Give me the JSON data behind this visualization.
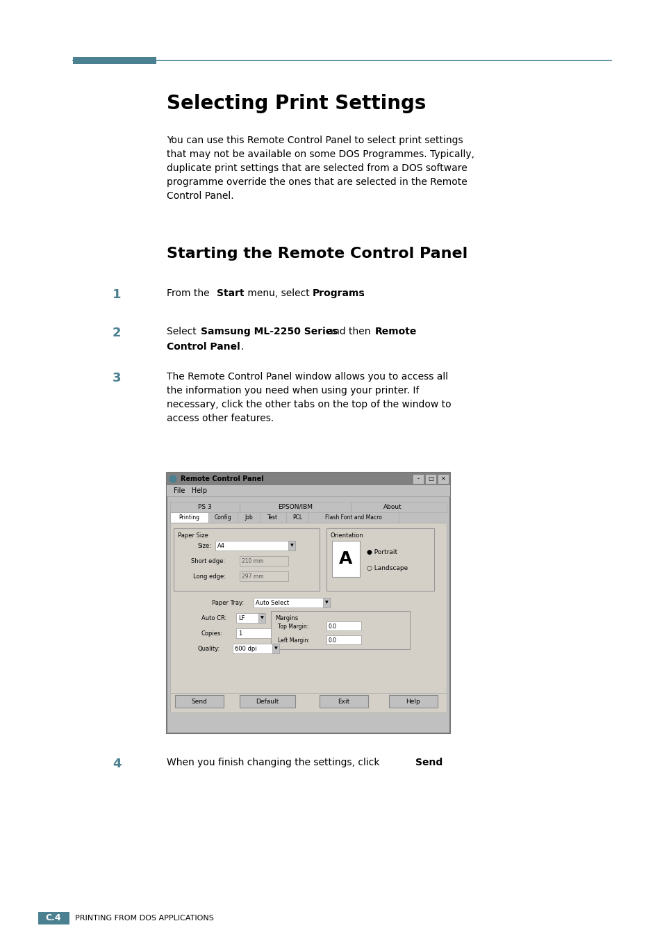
{
  "page_bg": "#ffffff",
  "teal_color": "#4a8090",
  "black": "#000000",
  "gray_dlg": "#c0c0c0",
  "gray_content": "#d4d0c8",
  "title1": "Selecting Print Settings",
  "title2": "Starting the Remote Control Panel",
  "body_text": "You can use this Remote Control Panel to select print settings\nthat may not be available on some DOS Programmes. Typically,\nduplicate print settings that are selected from a DOS software\nprogramme override the ones that are selected in the Remote\nControl Panel.",
  "step3_text": "The Remote Control Panel window allows you to access all\nthe information you need when using your printer. If\nnecessary, click the other tabs on the top of the window to\naccess other features.",
  "step4_text": "When you finish changing the settings, click ",
  "step4_bold": "Send",
  "footer_label": "C.4",
  "footer_text": "PRINTING FROM DOS APPLICATIONS"
}
